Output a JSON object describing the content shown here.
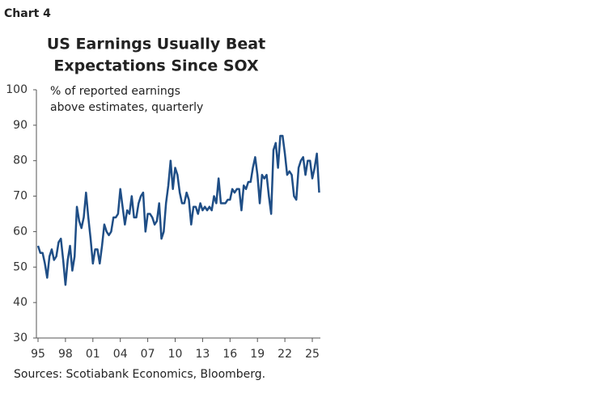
{
  "chart_data": {
    "type": "line",
    "chart_label": "Chart 4",
    "title": [
      "US Earnings Usually Beat",
      "Expectations Since SOX"
    ],
    "subtitle": [
      "% of reported earnings",
      "above estimates, quarterly"
    ],
    "source": "Sources: Scotiabank Economics, Bloomberg.",
    "color": "#1f4e86",
    "x": [
      1995,
      1995.25,
      1995.5,
      1995.75,
      1996,
      1996.25,
      1996.5,
      1996.75,
      1997,
      1997.25,
      1997.5,
      1997.75,
      1998,
      1998.25,
      1998.5,
      1998.75,
      1999,
      1999.25,
      1999.5,
      1999.75,
      2000,
      2000.25,
      2000.5,
      2000.75,
      2001,
      2001.25,
      2001.5,
      2001.75,
      2002,
      2002.25,
      2002.5,
      2002.75,
      2003,
      2003.25,
      2003.5,
      2003.75,
      2004,
      2004.25,
      2004.5,
      2004.75,
      2005,
      2005.25,
      2005.5,
      2005.75,
      2006,
      2006.25,
      2006.5,
      2006.75,
      2007,
      2007.25,
      2007.5,
      2007.75,
      2008,
      2008.25,
      2008.5,
      2008.75,
      2009,
      2009.25,
      2009.5,
      2009.75,
      2010,
      2010.25,
      2010.5,
      2010.75,
      2011,
      2011.25,
      2011.5,
      2011.75,
      2012,
      2012.25,
      2012.5,
      2012.75,
      2013,
      2013.25,
      2013.5,
      2013.75,
      2014,
      2014.25,
      2014.5,
      2014.75,
      2015,
      2015.25,
      2015.5,
      2015.75,
      2016,
      2016.25,
      2016.5,
      2016.75,
      2017,
      2017.25,
      2017.5,
      2017.75,
      2018,
      2018.25,
      2018.5,
      2018.75,
      2019,
      2019.25,
      2019.5,
      2019.75,
      2020,
      2020.25,
      2020.5,
      2020.75,
      2021,
      2021.25,
      2021.5,
      2021.75,
      2022,
      2022.25,
      2022.5,
      2022.75,
      2023,
      2023.25,
      2023.5,
      2023.75,
      2024,
      2024.25,
      2024.5,
      2024.75,
      2025,
      2025.25,
      2025.5,
      2025.75
    ],
    "values": [
      56,
      54,
      54,
      51,
      47,
      53,
      55,
      52,
      53,
      57,
      58,
      52,
      45,
      52,
      56,
      49,
      53,
      67,
      63,
      61,
      64,
      71,
      64,
      58,
      51,
      55,
      55,
      51,
      56,
      62,
      60,
      59,
      60,
      64,
      64,
      65,
      72,
      67,
      62,
      66,
      65,
      70,
      64,
      64,
      68,
      70,
      71,
      60,
      65,
      65,
      64,
      62,
      63,
      68,
      58,
      60,
      68,
      73,
      80,
      72,
      78,
      76,
      71,
      68,
      68,
      71,
      69,
      62,
      67,
      67,
      65,
      68,
      66,
      67,
      66,
      67,
      66,
      70,
      68,
      75,
      68,
      68,
      68,
      69,
      69,
      72,
      71,
      72,
      72,
      66,
      73,
      72,
      74,
      74,
      78,
      81,
      76,
      68,
      76,
      75,
      76,
      70,
      65,
      83,
      85,
      78,
      87,
      87,
      82,
      76,
      77,
      76,
      70,
      69,
      78,
      80,
      81,
      76,
      80,
      80,
      75,
      78,
      82,
      71
    ],
    "xlim": [
      1995,
      2025.9
    ],
    "xticks": [
      {
        "value": 1995,
        "label": "95"
      },
      {
        "value": 1998,
        "label": "98"
      },
      {
        "value": 2001,
        "label": "01"
      },
      {
        "value": 2004,
        "label": "04"
      },
      {
        "value": 2007,
        "label": "07"
      },
      {
        "value": 2010,
        "label": "10"
      },
      {
        "value": 2013,
        "label": "13"
      },
      {
        "value": 2016,
        "label": "16"
      },
      {
        "value": 2019,
        "label": "19"
      },
      {
        "value": 2022,
        "label": "22"
      },
      {
        "value": 2025,
        "label": "25"
      }
    ],
    "ylim": [
      30,
      100
    ],
    "yticks": [
      30,
      40,
      50,
      60,
      70,
      80,
      90,
      100
    ]
  }
}
